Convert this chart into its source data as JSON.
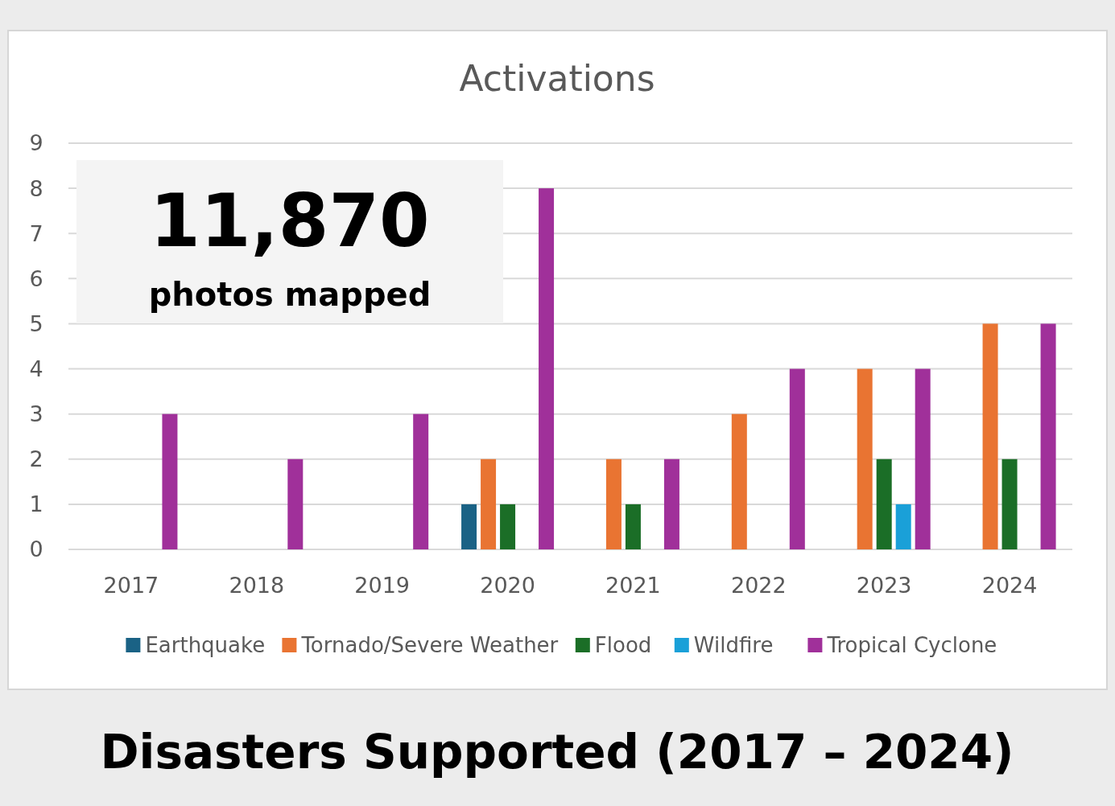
{
  "chart_data": {
    "type": "bar",
    "title": "Activations",
    "categories": [
      "2017",
      "2018",
      "2019",
      "2020",
      "2021",
      "2022",
      "2023",
      "2024"
    ],
    "series": [
      {
        "name": "Earthquake",
        "color": "#1a6285",
        "values": [
          null,
          null,
          null,
          1,
          null,
          null,
          null,
          null
        ]
      },
      {
        "name": "Tornado/Severe Weather",
        "color": "#e97432",
        "values": [
          null,
          null,
          null,
          2,
          2,
          3,
          4,
          5
        ]
      },
      {
        "name": "Flood",
        "color": "#1b6e27",
        "values": [
          null,
          null,
          null,
          1,
          1,
          null,
          2,
          2
        ]
      },
      {
        "name": "Wildfire",
        "color": "#1aa0d8",
        "values": [
          null,
          null,
          null,
          null,
          null,
          null,
          1,
          null
        ]
      },
      {
        "name": "Tropical Cyclone",
        "color": "#a0309a",
        "values": [
          3,
          2,
          3,
          8,
          2,
          4,
          4,
          5
        ]
      }
    ],
    "ylim": [
      0,
      9
    ],
    "yticks": [
      0,
      1,
      2,
      3,
      4,
      5,
      6,
      7,
      8,
      9
    ],
    "grid": "y",
    "legend": "bottom",
    "annotations": [
      "11,870",
      "photos mapped",
      "Disasters Supported (2017 – 2024)"
    ]
  }
}
